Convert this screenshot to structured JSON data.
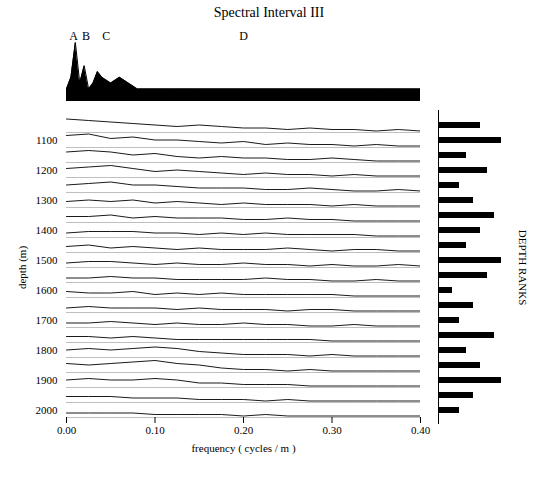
{
  "chart_data": {
    "type": "waterfall",
    "title": "Spectral Interval III",
    "x_label": "frequency ( cycles / m )",
    "y_label": "depth (m)",
    "color": "#000000",
    "xlim": [
      0,
      0.4
    ],
    "xticks": [
      0,
      0.1,
      0.2,
      0.3,
      0.4
    ],
    "yticks": [
      1100,
      1200,
      1300,
      1400,
      1500,
      1600,
      1700,
      1800,
      1900,
      2000
    ],
    "x": [
      0,
      0.025,
      0.05,
      0.075,
      0.1,
      0.125,
      0.15,
      0.175,
      0.2,
      0.225,
      0.25,
      0.275,
      0.3,
      0.325,
      0.35,
      0.375,
      0.4
    ],
    "zlim": [
      0,
      10
    ],
    "traces": [
      {
        "depth": 1050,
        "values": [
          9,
          8,
          7,
          6,
          5,
          4,
          5,
          4,
          3,
          3,
          2,
          3,
          2,
          2,
          1,
          2,
          1
        ]
      },
      {
        "depth": 1100,
        "values": [
          8,
          9,
          6,
          7,
          5,
          5,
          4,
          3,
          4,
          2,
          3,
          2,
          2,
          1,
          2,
          1,
          1
        ]
      },
      {
        "depth": 1150,
        "values": [
          7,
          8,
          7,
          5,
          6,
          4,
          3,
          4,
          3,
          3,
          2,
          2,
          3,
          2,
          1,
          1,
          1
        ]
      },
      {
        "depth": 1200,
        "values": [
          6,
          7,
          8,
          6,
          4,
          5,
          4,
          3,
          2,
          3,
          2,
          2,
          1,
          2,
          1,
          1,
          1
        ]
      },
      {
        "depth": 1250,
        "values": [
          5,
          6,
          7,
          5,
          5,
          4,
          3,
          3,
          3,
          2,
          2,
          3,
          2,
          1,
          1,
          2,
          1
        ]
      },
      {
        "depth": 1300,
        "values": [
          4,
          5,
          4,
          5,
          3,
          4,
          3,
          2,
          3,
          2,
          2,
          2,
          1,
          2,
          1,
          1,
          1
        ]
      },
      {
        "depth": 1350,
        "values": [
          4,
          4,
          5,
          3,
          4,
          3,
          3,
          3,
          2,
          2,
          3,
          2,
          2,
          1,
          1,
          1,
          1
        ]
      },
      {
        "depth": 1400,
        "values": [
          3,
          4,
          4,
          4,
          3,
          3,
          2,
          3,
          2,
          3,
          2,
          2,
          2,
          2,
          1,
          1,
          1
        ]
      },
      {
        "depth": 1450,
        "values": [
          4,
          5,
          3,
          4,
          3,
          2,
          3,
          2,
          2,
          2,
          3,
          2,
          1,
          2,
          2,
          1,
          1
        ]
      },
      {
        "depth": 1500,
        "values": [
          3,
          4,
          4,
          3,
          2,
          3,
          2,
          2,
          3,
          2,
          2,
          1,
          2,
          1,
          1,
          2,
          1
        ]
      },
      {
        "depth": 1550,
        "values": [
          3,
          3,
          4,
          3,
          3,
          2,
          2,
          2,
          2,
          3,
          2,
          2,
          1,
          1,
          2,
          1,
          1
        ]
      },
      {
        "depth": 1600,
        "values": [
          4,
          3,
          3,
          4,
          2,
          3,
          2,
          3,
          2,
          2,
          2,
          2,
          2,
          1,
          1,
          1,
          1
        ]
      },
      {
        "depth": 1650,
        "values": [
          3,
          4,
          3,
          3,
          3,
          2,
          3,
          2,
          2,
          2,
          1,
          2,
          2,
          1,
          1,
          1,
          1
        ]
      },
      {
        "depth": 1700,
        "values": [
          3,
          3,
          4,
          3,
          2,
          3,
          2,
          2,
          3,
          2,
          2,
          1,
          1,
          2,
          1,
          1,
          1
        ]
      },
      {
        "depth": 1750,
        "values": [
          4,
          4,
          3,
          4,
          3,
          2,
          2,
          2,
          2,
          2,
          2,
          2,
          1,
          1,
          1,
          1,
          1
        ]
      },
      {
        "depth": 1800,
        "values": [
          5,
          6,
          5,
          6,
          7,
          6,
          4,
          3,
          2,
          2,
          2,
          1,
          2,
          1,
          1,
          1,
          1
        ]
      },
      {
        "depth": 1850,
        "values": [
          6,
          5,
          6,
          7,
          8,
          6,
          5,
          3,
          2,
          2,
          1,
          2,
          1,
          1,
          1,
          1,
          1
        ]
      },
      {
        "depth": 1900,
        "values": [
          5,
          6,
          5,
          5,
          6,
          5,
          3,
          3,
          2,
          2,
          2,
          1,
          1,
          1,
          1,
          1,
          1
        ]
      },
      {
        "depth": 1950,
        "values": [
          4,
          4,
          4,
          3,
          3,
          3,
          2,
          2,
          2,
          1,
          2,
          1,
          1,
          1,
          1,
          1,
          1
        ]
      },
      {
        "depth": 2000,
        "values": [
          3,
          3,
          3,
          3,
          2,
          2,
          2,
          2,
          1,
          2,
          1,
          1,
          1,
          1,
          1,
          1,
          1
        ]
      }
    ],
    "summary": {
      "x": [
        0,
        0.005,
        0.01,
        0.015,
        0.02,
        0.025,
        0.03,
        0.035,
        0.04,
        0.05,
        0.06,
        0.07,
        0.08,
        0.1,
        0.12,
        0.15,
        0.2,
        0.25,
        0.3,
        0.35,
        0.4
      ],
      "values": [
        2,
        4,
        10,
        3,
        6,
        2,
        3,
        5,
        4,
        3,
        4,
        3,
        2,
        2,
        2,
        2,
        2,
        2,
        2,
        2,
        2
      ],
      "ylim": [
        0,
        10
      ],
      "annotations": [
        {
          "text": "A",
          "x": 0.008
        },
        {
          "text": "B",
          "x": 0.022
        },
        {
          "text": "C",
          "x": 0.045
        },
        {
          "text": "D",
          "x": 0.2
        }
      ]
    },
    "depth_ranks": {
      "title": "DEPTH RANKS",
      "xlim": [
        0,
        10
      ],
      "values": [
        6,
        9,
        4,
        7,
        3,
        5,
        8,
        6,
        4,
        9,
        7,
        2,
        5,
        3,
        8,
        4,
        6,
        9,
        5,
        3
      ]
    },
    "tick_labels": true
  }
}
